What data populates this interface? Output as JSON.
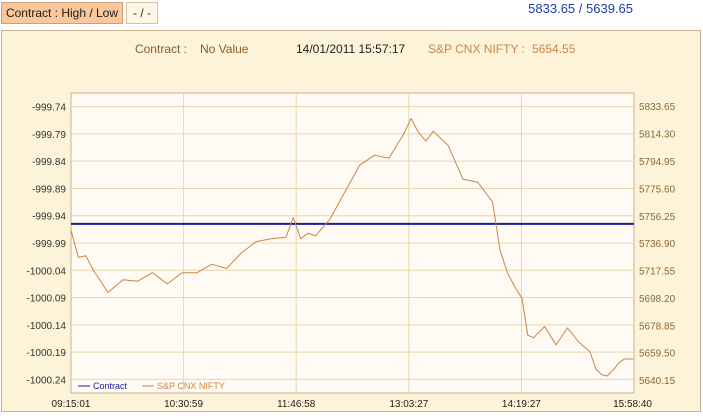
{
  "header": {
    "high_low_label": "Contract : High / Low",
    "high_low_value": "- / -",
    "range_text": "5833.65 / 5639.65"
  },
  "info": {
    "contract_label": "Contract :",
    "contract_value": "No Value",
    "datetime": "14/01/2011 15:57:17",
    "index_label": "S&P CNX NIFTY :",
    "index_value": "5654.55"
  },
  "colors": {
    "panel_bg": "#fdf3d8",
    "plot_bg": "#fffaf3",
    "grid": "#e8d6b0",
    "contract": "#1a1aa0",
    "index": "#c8864a",
    "label": "#8a5a2a",
    "axis_text": "#8a6a3a"
  },
  "chart_data": {
    "type": "line",
    "x_ticks": [
      "09:15:01",
      "10:30:59",
      "11:46:58",
      "13:03:27",
      "14:19:27",
      "15:58:40"
    ],
    "y_left_ticks": [
      "-999.74",
      "-999.79",
      "-999.84",
      "-999.89",
      "-999.94",
      "-999.99",
      "-1000.04",
      "-1000.09",
      "-1000.14",
      "-1000.19",
      "-1000.24"
    ],
    "y_right_ticks": [
      "5833.65",
      "5814.30",
      "5794.95",
      "5775.60",
      "5756.25",
      "5736.90",
      "5717.55",
      "5698.20",
      "5678.85",
      "5659.50",
      "5640.15"
    ],
    "y_left_range": [
      -1000.265,
      -999.715
    ],
    "y_right_range": [
      5631.0,
      5843.0
    ],
    "legend": [
      "Contract",
      "S&P CNX NIFTY"
    ],
    "legend_position": "bottom-left",
    "grid": true,
    "series": [
      {
        "name": "Contract",
        "axis": "left",
        "x": [
          "09:15:01",
          "15:58:40"
        ],
        "values": [
          -999.955,
          -999.955
        ]
      },
      {
        "name": "S&P CNX NIFTY",
        "axis": "right",
        "x": [
          "09:15",
          "09:20",
          "09:25",
          "09:30",
          "09:40",
          "09:50",
          "10:00",
          "10:10",
          "10:20",
          "10:30",
          "10:40",
          "10:50",
          "11:00",
          "11:10",
          "11:20",
          "11:30",
          "11:40",
          "11:45",
          "11:50",
          "11:55",
          "12:00",
          "12:10",
          "12:20",
          "12:30",
          "12:40",
          "12:50",
          "13:00",
          "13:05",
          "13:10",
          "13:15",
          "13:20",
          "13:30",
          "13:40",
          "13:50",
          "14:00",
          "14:05",
          "14:10",
          "14:15",
          "14:20",
          "14:25",
          "14:30",
          "14:40",
          "14:50",
          "15:00",
          "15:10",
          "15:20",
          "15:25",
          "15:30",
          "15:35",
          "15:40",
          "15:45",
          "15:50",
          "15:58"
        ],
        "values": [
          5746,
          5727,
          5728,
          5718,
          5702,
          5711,
          5710,
          5716,
          5708,
          5716,
          5716,
          5722,
          5719,
          5730,
          5738,
          5740,
          5741,
          5755,
          5740,
          5744,
          5742,
          5754,
          5773,
          5792,
          5799,
          5797,
          5814,
          5825,
          5815,
          5809,
          5816,
          5806,
          5782,
          5780,
          5766,
          5732,
          5716,
          5706,
          5698,
          5672,
          5670,
          5678,
          5665,
          5677,
          5667,
          5660,
          5648,
          5644,
          5643,
          5647,
          5652,
          5655,
          5655
        ]
      }
    ]
  }
}
